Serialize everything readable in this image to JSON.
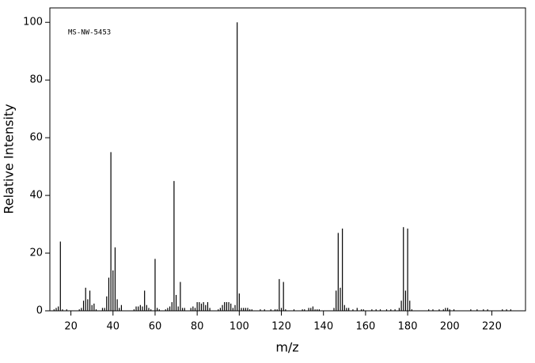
{
  "chart_data": {
    "type": "bar",
    "annotation": "MS-NW-5453",
    "x_label": "m/z",
    "y_label": "Relative Intensity",
    "x": [
      12,
      13,
      14,
      15,
      16,
      18,
      24,
      25,
      26,
      27,
      28,
      29,
      30,
      31,
      32,
      35,
      36,
      37,
      38,
      39,
      40,
      41,
      42,
      43,
      44,
      50,
      51,
      52,
      53,
      54,
      55,
      56,
      57,
      58,
      60,
      61,
      62,
      65,
      66,
      67,
      68,
      69,
      70,
      71,
      72,
      73,
      74,
      77,
      78,
      79,
      80,
      81,
      82,
      83,
      84,
      85,
      86,
      90,
      91,
      92,
      93,
      94,
      95,
      96,
      97,
      98,
      99,
      100,
      101,
      102,
      103,
      104,
      105,
      106,
      110,
      112,
      115,
      117,
      118,
      119,
      120,
      121,
      122,
      126,
      130,
      131,
      133,
      134,
      135,
      136,
      137,
      138,
      145,
      146,
      147,
      148,
      149,
      150,
      151,
      152,
      154,
      156,
      158,
      159,
      163,
      165,
      167,
      170,
      172,
      174,
      176,
      177,
      178,
      179,
      180,
      181,
      182,
      190,
      192,
      195,
      197,
      198,
      199,
      200,
      202,
      210,
      213,
      216,
      218,
      225,
      227,
      229
    ],
    "values": [
      0.5,
      1,
      1.5,
      24,
      0.5,
      0.5,
      0.5,
      1,
      3.5,
      8,
      4,
      7,
      2,
      2.5,
      0.5,
      1,
      1,
      5,
      11.5,
      55,
      14,
      22,
      4,
      1,
      2,
      0.5,
      1.5,
      1.5,
      2,
      1.5,
      7,
      2,
      1,
      0.5,
      18,
      1,
      0.5,
      0.5,
      1,
      1.5,
      3,
      45,
      5.5,
      1.5,
      10,
      1,
      1,
      1,
      1.5,
      1,
      3,
      3,
      2.5,
      3,
      2,
      3,
      1,
      0.5,
      1,
      2,
      3,
      3,
      3,
      2.5,
      1,
      2,
      100,
      6,
      1,
      1,
      1,
      1,
      0.5,
      0.5,
      0.5,
      0.5,
      0.5,
      0.5,
      0.5,
      11,
      1,
      10,
      0.5,
      0.5,
      0.5,
      0.5,
      1,
      1,
      1.5,
      0.5,
      0.5,
      0.5,
      1,
      7,
      27,
      8,
      28.5,
      2,
      1,
      1,
      0.5,
      1,
      0.5,
      0.5,
      0.5,
      0.5,
      0.5,
      0.5,
      0.5,
      0.5,
      1,
      3.5,
      29,
      7,
      28.5,
      3.5,
      0.5,
      0.5,
      0.5,
      0.5,
      0.5,
      1,
      1,
      0.5,
      0.5,
      0.5,
      0.5,
      0.5,
      0.5,
      0.5,
      0.5,
      0.5
    ],
    "color": "#000000",
    "xlim": [
      10,
      236
    ],
    "ylim": [
      0,
      105
    ],
    "xticks": [
      20,
      40,
      60,
      80,
      100,
      120,
      140,
      160,
      180,
      200,
      220
    ],
    "yticks": [
      0,
      20,
      40,
      60,
      80,
      100
    ]
  }
}
